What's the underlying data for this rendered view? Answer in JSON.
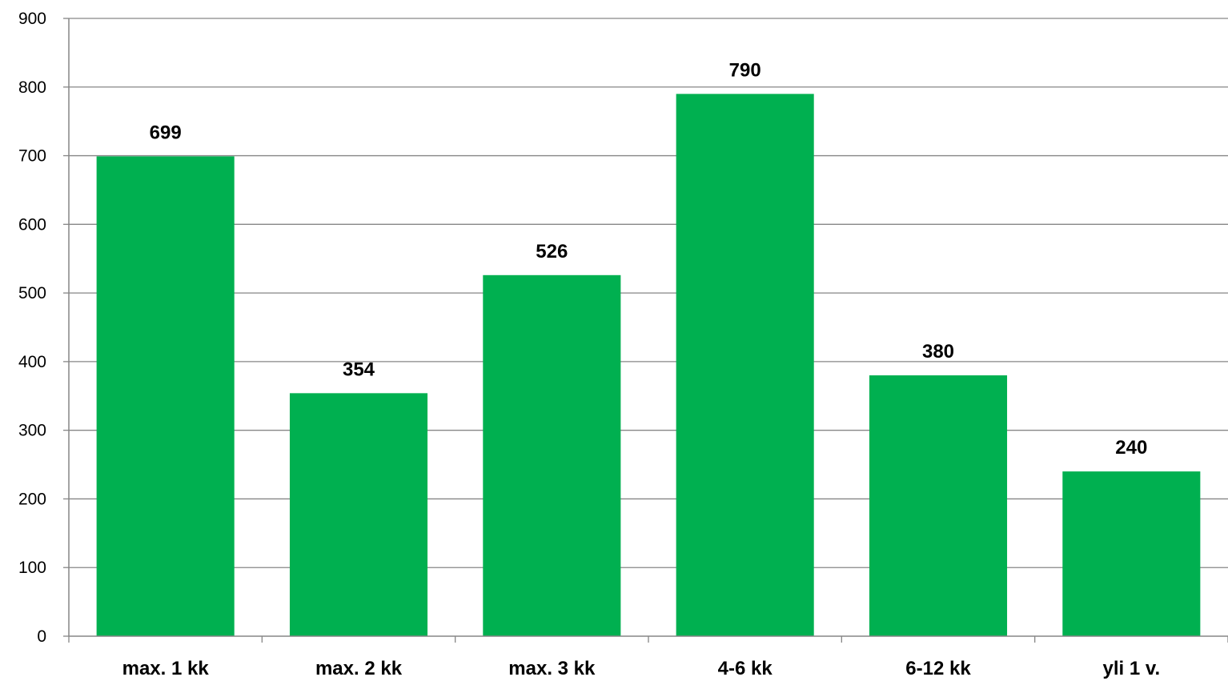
{
  "chart_data": {
    "type": "bar",
    "categories": [
      "max. 1 kk",
      "max. 2 kk",
      "max. 3 kk",
      "4-6 kk",
      "6-12 kk",
      "yli 1 v."
    ],
    "values": [
      699,
      354,
      526,
      790,
      380,
      240
    ],
    "data_labels": [
      "699",
      "354",
      "526",
      "790",
      "380",
      "240"
    ],
    "ylim": [
      0,
      900
    ],
    "yticks": [
      0,
      100,
      200,
      300,
      400,
      500,
      600,
      700,
      800,
      900
    ],
    "grid": true,
    "legend": "none",
    "bar_color": "#00B050"
  }
}
